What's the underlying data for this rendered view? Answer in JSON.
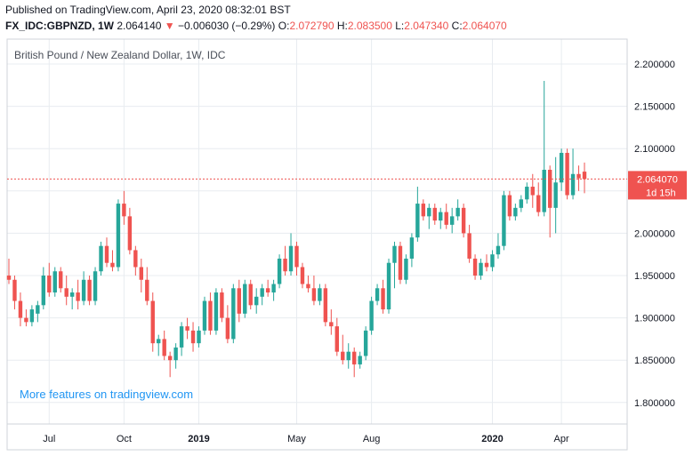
{
  "header": {
    "published": "Published on TradingView.com, April 23, 2020 08:32:01 BST",
    "symbol": "FX_IDC:GBPNZD, 1W",
    "last": "2.064140",
    "arrow": "▼",
    "change": "−0.006030 (−0.29%)",
    "o_label": "O:",
    "o_val": "2.072790",
    "h_label": "H:",
    "h_val": "2.083500",
    "l_label": "L:",
    "l_val": "2.047340",
    "c_label": "C:",
    "c_val": "2.064070"
  },
  "chart_title": "British Pound / New Zealand Dollar, 1W, IDC",
  "watermark": "More features on tradingview.com",
  "price_label": "2.064070",
  "countdown_label": "1d 15h",
  "colors": {
    "up": "#26a69a",
    "down": "#ef5350",
    "grid": "#e8ecf0",
    "text": "#131722",
    "watermark": "#2196f3"
  },
  "chart_data": {
    "type": "candlestick",
    "title": "British Pound / New Zealand Dollar, 1W, IDC",
    "ylim": [
      1.78,
      2.22
    ],
    "y_ticks": [
      "2.200000",
      "2.150000",
      "2.100000",
      "2.050000",
      "2.000000",
      "1.950000",
      "1.900000",
      "1.850000",
      "1.800000"
    ],
    "y_tick_values": [
      2.2,
      2.15,
      2.1,
      2.05,
      2.0,
      1.95,
      1.9,
      1.85,
      1.8
    ],
    "x_ticks": [
      {
        "label": "Jul",
        "i": 7,
        "bold": false
      },
      {
        "label": "Oct",
        "i": 20,
        "bold": false
      },
      {
        "label": "2019",
        "i": 33,
        "bold": true
      },
      {
        "label": "May",
        "i": 50,
        "bold": false
      },
      {
        "label": "Aug",
        "i": 63,
        "bold": false
      },
      {
        "label": "2020",
        "i": 84,
        "bold": true
      },
      {
        "label": "Apr",
        "i": 96,
        "bold": false
      }
    ],
    "last_close": 2.06407,
    "ohlc": [
      [
        1.95,
        1.97,
        1.94,
        1.945
      ],
      [
        1.945,
        1.95,
        1.91,
        1.92
      ],
      [
        1.92,
        1.93,
        1.89,
        1.9
      ],
      [
        1.9,
        1.91,
        1.89,
        1.895
      ],
      [
        1.895,
        1.915,
        1.89,
        1.91
      ],
      [
        1.905,
        1.92,
        1.895,
        1.915
      ],
      [
        1.915,
        1.96,
        1.91,
        1.95
      ],
      [
        1.95,
        1.965,
        1.925,
        1.93
      ],
      [
        1.93,
        1.96,
        1.925,
        1.955
      ],
      [
        1.955,
        1.96,
        1.93,
        1.935
      ],
      [
        1.935,
        1.95,
        1.915,
        1.925
      ],
      [
        1.925,
        1.935,
        1.91,
        1.93
      ],
      [
        1.93,
        1.945,
        1.91,
        1.92
      ],
      [
        1.92,
        1.955,
        1.915,
        1.945
      ],
      [
        1.945,
        1.95,
        1.915,
        1.92
      ],
      [
        1.92,
        1.96,
        1.915,
        1.955
      ],
      [
        1.955,
        1.99,
        1.95,
        1.985
      ],
      [
        1.985,
        1.995,
        1.96,
        1.965
      ],
      [
        1.965,
        1.98,
        1.955,
        1.96
      ],
      [
        1.96,
        2.04,
        1.955,
        2.035
      ],
      [
        2.035,
        2.05,
        2.01,
        2.02
      ],
      [
        2.02,
        2.03,
        1.975,
        1.98
      ],
      [
        1.98,
        1.985,
        1.95,
        1.96
      ],
      [
        1.96,
        1.97,
        1.93,
        1.945
      ],
      [
        1.945,
        1.96,
        1.915,
        1.92
      ],
      [
        1.92,
        1.93,
        1.86,
        1.87
      ],
      [
        1.87,
        1.88,
        1.855,
        1.875
      ],
      [
        1.875,
        1.885,
        1.85,
        1.855
      ],
      [
        1.855,
        1.86,
        1.83,
        1.85
      ],
      [
        1.85,
        1.87,
        1.84,
        1.865
      ],
      [
        1.865,
        1.895,
        1.855,
        1.89
      ],
      [
        1.89,
        1.9,
        1.875,
        1.885
      ],
      [
        1.885,
        1.895,
        1.86,
        1.87
      ],
      [
        1.87,
        1.89,
        1.865,
        1.885
      ],
      [
        1.885,
        1.925,
        1.88,
        1.92
      ],
      [
        1.92,
        1.93,
        1.88,
        1.885
      ],
      [
        1.885,
        1.935,
        1.88,
        1.93
      ],
      [
        1.93,
        1.935,
        1.895,
        1.9
      ],
      [
        1.9,
        1.915,
        1.87,
        1.875
      ],
      [
        1.875,
        1.94,
        1.87,
        1.935
      ],
      [
        1.935,
        1.945,
        1.895,
        1.905
      ],
      [
        1.905,
        1.945,
        1.9,
        1.94
      ],
      [
        1.94,
        1.945,
        1.91,
        1.915
      ],
      [
        1.915,
        1.935,
        1.905,
        1.925
      ],
      [
        1.925,
        1.94,
        1.915,
        1.935
      ],
      [
        1.935,
        1.945,
        1.925,
        1.93
      ],
      [
        1.93,
        1.945,
        1.92,
        1.94
      ],
      [
        1.94,
        1.975,
        1.935,
        1.97
      ],
      [
        1.97,
        1.985,
        1.95,
        1.955
      ],
      [
        1.955,
        2.0,
        1.95,
        1.985
      ],
      [
        1.985,
        1.99,
        1.95,
        1.96
      ],
      [
        1.96,
        1.965,
        1.935,
        1.94
      ],
      [
        1.94,
        1.95,
        1.93,
        1.935
      ],
      [
        1.935,
        1.95,
        1.915,
        1.92
      ],
      [
        1.92,
        1.94,
        1.915,
        1.935
      ],
      [
        1.935,
        1.94,
        1.89,
        1.895
      ],
      [
        1.895,
        1.91,
        1.88,
        1.89
      ],
      [
        1.89,
        1.9,
        1.855,
        1.86
      ],
      [
        1.86,
        1.88,
        1.845,
        1.85
      ],
      [
        1.85,
        1.87,
        1.84,
        1.86
      ],
      [
        1.86,
        1.865,
        1.83,
        1.845
      ],
      [
        1.845,
        1.86,
        1.84,
        1.855
      ],
      [
        1.855,
        1.89,
        1.85,
        1.885
      ],
      [
        1.885,
        1.925,
        1.88,
        1.92
      ],
      [
        1.92,
        1.94,
        1.915,
        1.935
      ],
      [
        1.935,
        1.945,
        1.905,
        1.91
      ],
      [
        1.91,
        1.97,
        1.905,
        1.965
      ],
      [
        1.965,
        1.99,
        1.935,
        1.985
      ],
      [
        1.985,
        1.99,
        1.94,
        1.945
      ],
      [
        1.945,
        1.975,
        1.94,
        1.97
      ],
      [
        1.97,
        2.0,
        1.96,
        1.995
      ],
      [
        1.995,
        2.055,
        1.99,
        2.035
      ],
      [
        2.035,
        2.04,
        2.015,
        2.02
      ],
      [
        2.02,
        2.035,
        2.005,
        2.03
      ],
      [
        2.03,
        2.035,
        2.01,
        2.015
      ],
      [
        2.015,
        2.03,
        2.005,
        2.025
      ],
      [
        2.025,
        2.035,
        2.005,
        2.01
      ],
      [
        2.01,
        2.03,
        2.0,
        2.02
      ],
      [
        2.02,
        2.04,
        2.015,
        2.03
      ],
      [
        2.03,
        2.035,
        1.995,
        2.0
      ],
      [
        2.0,
        2.01,
        1.965,
        1.97
      ],
      [
        1.97,
        1.975,
        1.945,
        1.95
      ],
      [
        1.95,
        1.97,
        1.945,
        1.965
      ],
      [
        1.965,
        1.975,
        1.955,
        1.96
      ],
      [
        1.96,
        1.98,
        1.955,
        1.975
      ],
      [
        1.975,
        2.0,
        1.97,
        1.985
      ],
      [
        1.985,
        2.05,
        1.98,
        2.045
      ],
      [
        2.045,
        2.05,
        2.015,
        2.02
      ],
      [
        2.02,
        2.035,
        2.015,
        2.03
      ],
      [
        2.03,
        2.045,
        2.025,
        2.04
      ],
      [
        2.04,
        2.06,
        2.035,
        2.055
      ],
      [
        2.055,
        2.07,
        2.03,
        2.045
      ],
      [
        2.045,
        2.06,
        2.02,
        2.025
      ],
      [
        2.025,
        2.18,
        2.02,
        2.075
      ],
      [
        2.075,
        2.08,
        1.995,
        2.03
      ],
      [
        2.03,
        2.09,
        2.0,
        2.06
      ],
      [
        2.06,
        2.1,
        2.05,
        2.095
      ],
      [
        2.095,
        2.1,
        2.04,
        2.045
      ],
      [
        2.045,
        2.1,
        2.04,
        2.07
      ],
      [
        2.07,
        2.08,
        2.05,
        2.065
      ],
      [
        2.07279,
        2.0835,
        2.04734,
        2.06407
      ]
    ]
  }
}
